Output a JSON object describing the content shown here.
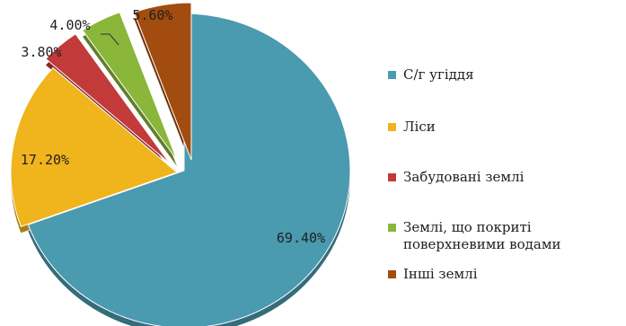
{
  "chart_data": {
    "type": "pie",
    "exploded": true,
    "slices": [
      {
        "label": "С/г угіддя",
        "value": 69.4,
        "value_label": "69.40%",
        "color": "#4a9ab0"
      },
      {
        "label": "Ліси",
        "value": 17.2,
        "value_label": "17.20%",
        "color": "#f0b41c"
      },
      {
        "label": "Забудовані землі",
        "value": 3.8,
        "value_label": "3.80%",
        "color": "#c23a3a"
      },
      {
        "label": "Землі, що покриті поверхневими водами",
        "value": 4.0,
        "value_label": "4.00%",
        "color": "#8ab63a"
      },
      {
        "label": "Інші землі",
        "value": 5.6,
        "value_label": "5.60%",
        "color": "#a24c10"
      }
    ],
    "legend_position": "right",
    "title": ""
  }
}
